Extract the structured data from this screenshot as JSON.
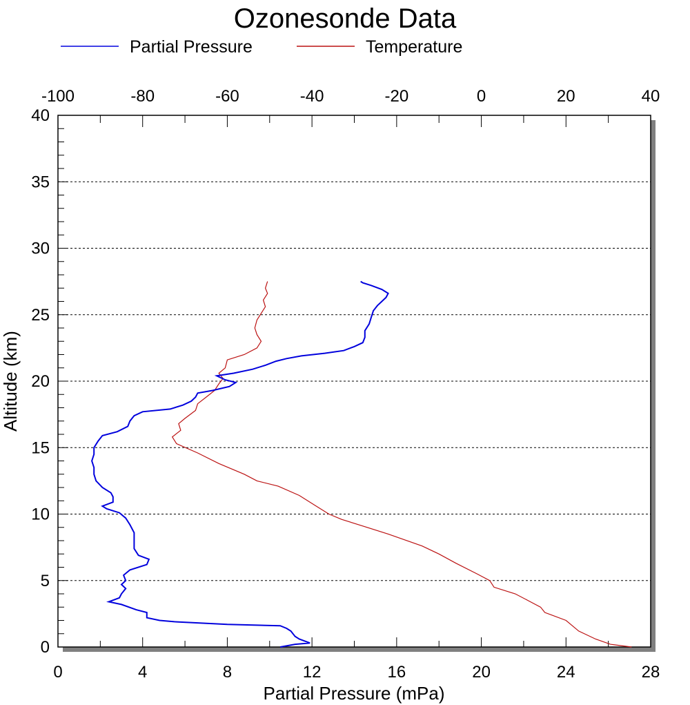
{
  "chart_data": {
    "type": "line",
    "title": "Ozonesonde Data",
    "xlabel": "Partial Pressure (mPa)",
    "ylabel": "Altitude (km)",
    "x_bottom": {
      "range": [
        0,
        28
      ],
      "ticks": [
        "0",
        "4",
        "8",
        "12",
        "16",
        "20",
        "24",
        "28"
      ]
    },
    "x_top": {
      "range": [
        -100,
        40
      ],
      "ticks": [
        "-100",
        "-80",
        "-60",
        "-40",
        "-20",
        "0",
        "20",
        "40"
      ]
    },
    "y": {
      "range": [
        0,
        40
      ],
      "ticks": [
        "0",
        "5",
        "10",
        "15",
        "20",
        "25",
        "30",
        "35",
        "40"
      ]
    },
    "grid": {
      "horizontal_dashed": true,
      "at": [
        5,
        10,
        15,
        20,
        25,
        30,
        35
      ]
    },
    "legend": {
      "position": "top"
    },
    "series": [
      {
        "name": "Partial Pressure",
        "axis": "bottom",
        "color": "#0000dd",
        "points": [
          [
            10.5,
            0.0
          ],
          [
            11.2,
            0.2
          ],
          [
            11.9,
            0.3
          ],
          [
            11.4,
            0.6
          ],
          [
            11.2,
            0.8
          ],
          [
            11.0,
            1.2
          ],
          [
            10.8,
            1.4
          ],
          [
            10.5,
            1.6
          ],
          [
            8.0,
            1.7
          ],
          [
            5.5,
            1.9
          ],
          [
            4.8,
            2.0
          ],
          [
            4.2,
            2.2
          ],
          [
            4.2,
            2.6
          ],
          [
            3.7,
            2.8
          ],
          [
            3.0,
            3.2
          ],
          [
            2.4,
            3.4
          ],
          [
            2.9,
            3.7
          ],
          [
            3.0,
            4.0
          ],
          [
            3.2,
            4.4
          ],
          [
            3.0,
            4.7
          ],
          [
            3.2,
            5.0
          ],
          [
            3.1,
            5.4
          ],
          [
            3.4,
            5.8
          ],
          [
            4.2,
            6.2
          ],
          [
            4.3,
            6.6
          ],
          [
            3.8,
            6.9
          ],
          [
            3.6,
            7.4
          ],
          [
            3.6,
            8.0
          ],
          [
            3.6,
            8.6
          ],
          [
            3.4,
            9.2
          ],
          [
            3.2,
            9.7
          ],
          [
            2.9,
            10.1
          ],
          [
            2.3,
            10.4
          ],
          [
            2.1,
            10.6
          ],
          [
            2.6,
            10.9
          ],
          [
            2.6,
            11.3
          ],
          [
            2.5,
            11.6
          ],
          [
            2.1,
            12.0
          ],
          [
            1.8,
            12.5
          ],
          [
            1.7,
            13.0
          ],
          [
            1.7,
            13.5
          ],
          [
            1.6,
            14.0
          ],
          [
            1.7,
            14.5
          ],
          [
            1.7,
            15.0
          ],
          [
            1.9,
            15.5
          ],
          [
            2.1,
            15.9
          ],
          [
            2.8,
            16.2
          ],
          [
            3.3,
            16.6
          ],
          [
            3.4,
            17.0
          ],
          [
            3.6,
            17.4
          ],
          [
            4.0,
            17.7
          ],
          [
            5.3,
            17.9
          ],
          [
            5.9,
            18.2
          ],
          [
            6.3,
            18.5
          ],
          [
            6.5,
            18.8
          ],
          [
            6.6,
            19.1
          ],
          [
            7.3,
            19.3
          ],
          [
            8.1,
            19.6
          ],
          [
            8.4,
            19.9
          ],
          [
            7.9,
            20.1
          ],
          [
            7.5,
            20.4
          ],
          [
            8.3,
            20.6
          ],
          [
            9.2,
            20.9
          ],
          [
            9.8,
            21.2
          ],
          [
            10.3,
            21.5
          ],
          [
            10.8,
            21.7
          ],
          [
            11.5,
            21.9
          ],
          [
            12.6,
            22.1
          ],
          [
            13.5,
            22.3
          ],
          [
            14.0,
            22.6
          ],
          [
            14.4,
            22.9
          ],
          [
            14.5,
            23.3
          ],
          [
            14.5,
            23.8
          ],
          [
            14.7,
            24.3
          ],
          [
            14.8,
            24.8
          ],
          [
            14.9,
            25.3
          ],
          [
            15.1,
            25.7
          ],
          [
            15.3,
            26.0
          ],
          [
            15.5,
            26.3
          ],
          [
            15.6,
            26.6
          ],
          [
            15.3,
            26.9
          ],
          [
            14.8,
            27.2
          ],
          [
            14.4,
            27.4
          ],
          [
            14.3,
            27.5
          ]
        ]
      },
      {
        "name": "Temperature",
        "axis": "top",
        "color": "#bb1111",
        "points": [
          [
            35.5,
            0.0
          ],
          [
            30.5,
            0.2
          ],
          [
            27.0,
            0.6
          ],
          [
            23.0,
            1.2
          ],
          [
            20.0,
            2.0
          ],
          [
            15.0,
            2.6
          ],
          [
            14.0,
            3.0
          ],
          [
            11.0,
            3.5
          ],
          [
            8.0,
            4.0
          ],
          [
            3.0,
            4.5
          ],
          [
            2.0,
            5.0
          ],
          [
            -1.0,
            5.5
          ],
          [
            -6.0,
            6.3
          ],
          [
            -10.0,
            7.0
          ],
          [
            -14.0,
            7.6
          ],
          [
            -22.0,
            8.5
          ],
          [
            -28.0,
            9.1
          ],
          [
            -33.0,
            9.6
          ],
          [
            -36.0,
            10.0
          ],
          [
            -39.0,
            10.6
          ],
          [
            -43.0,
            11.4
          ],
          [
            -48.0,
            12.1
          ],
          [
            -53.0,
            12.5
          ],
          [
            -56.0,
            13.0
          ],
          [
            -62.0,
            13.8
          ],
          [
            -67.0,
            14.6
          ],
          [
            -72.0,
            15.3
          ],
          [
            -73.0,
            15.8
          ],
          [
            -71.0,
            16.3
          ],
          [
            -71.5,
            16.8
          ],
          [
            -70.0,
            17.2
          ],
          [
            -67.5,
            17.8
          ],
          [
            -67.0,
            18.3
          ],
          [
            -65.0,
            18.8
          ],
          [
            -63.0,
            19.3
          ],
          [
            -62.0,
            19.8
          ],
          [
            -61.0,
            20.2
          ],
          [
            -62.0,
            20.6
          ],
          [
            -60.5,
            21.0
          ],
          [
            -60.0,
            21.6
          ],
          [
            -56.0,
            22.0
          ],
          [
            -53.0,
            22.5
          ],
          [
            -52.0,
            23.0
          ],
          [
            -53.0,
            23.5
          ],
          [
            -53.5,
            24.0
          ],
          [
            -53.0,
            24.6
          ],
          [
            -52.0,
            25.1
          ],
          [
            -51.0,
            25.6
          ],
          [
            -51.5,
            26.1
          ],
          [
            -50.5,
            26.6
          ],
          [
            -51.0,
            27.0
          ],
          [
            -50.5,
            27.5
          ]
        ]
      }
    ]
  }
}
